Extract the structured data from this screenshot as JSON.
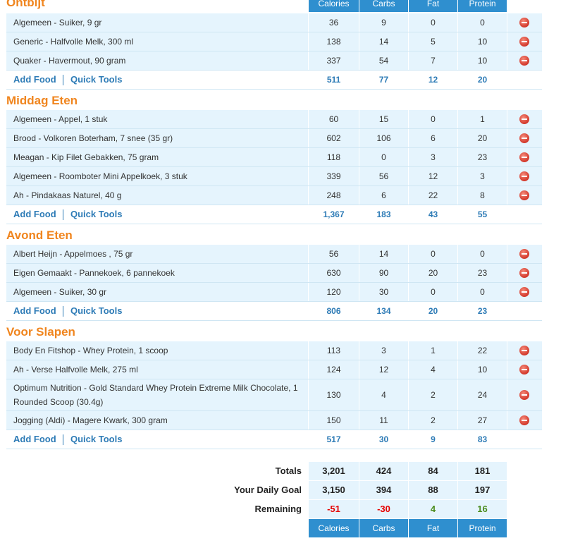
{
  "columns": [
    "Calories",
    "Carbs",
    "Fat",
    "Protein"
  ],
  "meals": [
    {
      "title": "Ontbijt",
      "entries": [
        {
          "name": "Algemeen - Suiker, 9 gr",
          "calories": "36",
          "carbs": "9",
          "fat": "0",
          "protein": "0"
        },
        {
          "name": "Generic - Halfvolle Melk, 300 ml",
          "calories": "138",
          "carbs": "14",
          "fat": "5",
          "protein": "10"
        },
        {
          "name": "Quaker - Havermout, 90 gram",
          "calories": "337",
          "carbs": "54",
          "fat": "7",
          "protein": "10"
        }
      ],
      "totals": {
        "calories": "511",
        "carbs": "77",
        "fat": "12",
        "protein": "20"
      }
    },
    {
      "title": "Middag Eten",
      "entries": [
        {
          "name": "Algemeen - Appel, 1 stuk",
          "calories": "60",
          "carbs": "15",
          "fat": "0",
          "protein": "1"
        },
        {
          "name": "Brood - Volkoren Boterham, 7 snee (35 gr)",
          "calories": "602",
          "carbs": "106",
          "fat": "6",
          "protein": "20"
        },
        {
          "name": "Meagan - Kip Filet Gebakken, 75 gram",
          "calories": "118",
          "carbs": "0",
          "fat": "3",
          "protein": "23"
        },
        {
          "name": "Algemeen - Roomboter Mini Appelkoek, 3 stuk",
          "calories": "339",
          "carbs": "56",
          "fat": "12",
          "protein": "3"
        },
        {
          "name": "Ah - Pindakaas Naturel, 40 g",
          "calories": "248",
          "carbs": "6",
          "fat": "22",
          "protein": "8"
        }
      ],
      "totals": {
        "calories": "1,367",
        "carbs": "183",
        "fat": "43",
        "protein": "55"
      }
    },
    {
      "title": "Avond Eten",
      "entries": [
        {
          "name": "Albert Heijn - Appelmoes , 75 gr",
          "calories": "56",
          "carbs": "14",
          "fat": "0",
          "protein": "0"
        },
        {
          "name": "Eigen Gemaakt - Pannekoek, 6 pannekoek",
          "calories": "630",
          "carbs": "90",
          "fat": "20",
          "protein": "23"
        },
        {
          "name": "Algemeen - Suiker, 30 gr",
          "calories": "120",
          "carbs": "30",
          "fat": "0",
          "protein": "0"
        }
      ],
      "totals": {
        "calories": "806",
        "carbs": "134",
        "fat": "20",
        "protein": "23"
      }
    },
    {
      "title": "Voor Slapen",
      "entries": [
        {
          "name": "Body En Fitshop - Whey Protein, 1 scoop",
          "calories": "113",
          "carbs": "3",
          "fat": "1",
          "protein": "22"
        },
        {
          "name": "Ah - Verse Halfvolle Melk, 275 ml",
          "calories": "124",
          "carbs": "12",
          "fat": "4",
          "protein": "10"
        },
        {
          "name": "Optimum Nutrition - Gold Standard Whey Protein Extreme Milk Chocolate, 1 Rounded Scoop (30.4g)",
          "calories": "130",
          "carbs": "4",
          "fat": "2",
          "protein": "24"
        },
        {
          "name": "Jogging (Aldi) - Magere Kwark, 300 gram",
          "calories": "150",
          "carbs": "11",
          "fat": "2",
          "protein": "27"
        }
      ],
      "totals": {
        "calories": "517",
        "carbs": "30",
        "fat": "9",
        "protein": "83"
      }
    }
  ],
  "links": {
    "add_food": "Add Food",
    "quick_tools": "Quick Tools"
  },
  "summary": {
    "totals": {
      "label": "Totals",
      "calories": "3,201",
      "carbs": "424",
      "fat": "84",
      "protein": "181"
    },
    "goal": {
      "label": "Your Daily Goal",
      "calories": "3,150",
      "carbs": "394",
      "fat": "88",
      "protein": "197"
    },
    "remaining": {
      "label": "Remaining",
      "calories": "-51",
      "carbs": "-30",
      "fat": "4",
      "protein": "16"
    }
  },
  "colors": {
    "header_bar": "#2f8fcf",
    "meal_title": "#f0851e",
    "row_bg": "#e5f4fd",
    "link": "#2d7bb6",
    "over": "#e60000",
    "under": "#4b8c1e"
  },
  "icons": {
    "delete": "remove-circle-icon"
  }
}
